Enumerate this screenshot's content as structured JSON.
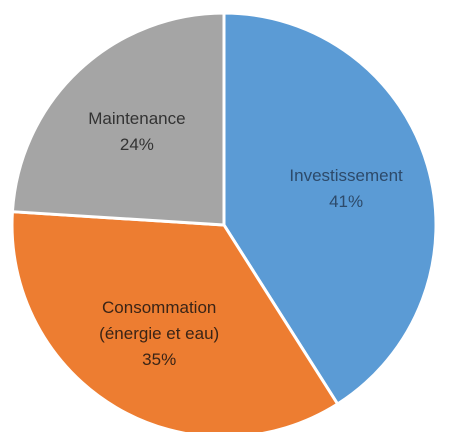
{
  "chart_data": {
    "type": "pie",
    "title": "",
    "legend": "none",
    "slices": [
      {
        "label": "Investissement",
        "label_lines": [
          "Investissement"
        ],
        "value": 41,
        "percent_label": "41%",
        "color": "#5b9bd5",
        "text_color": "#2d4a6a"
      },
      {
        "label": "Consommation (énergie et eau)",
        "label_lines": [
          "Consommation",
          "(énergie et eau)"
        ],
        "value": 35,
        "percent_label": "35%",
        "color": "#ed7d31",
        "text_color": "#3a2416"
      },
      {
        "label": "Maintenance",
        "label_lines": [
          "Maintenance"
        ],
        "value": 24,
        "percent_label": "24%",
        "color": "#a5a5a5",
        "text_color": "#333333"
      }
    ]
  }
}
